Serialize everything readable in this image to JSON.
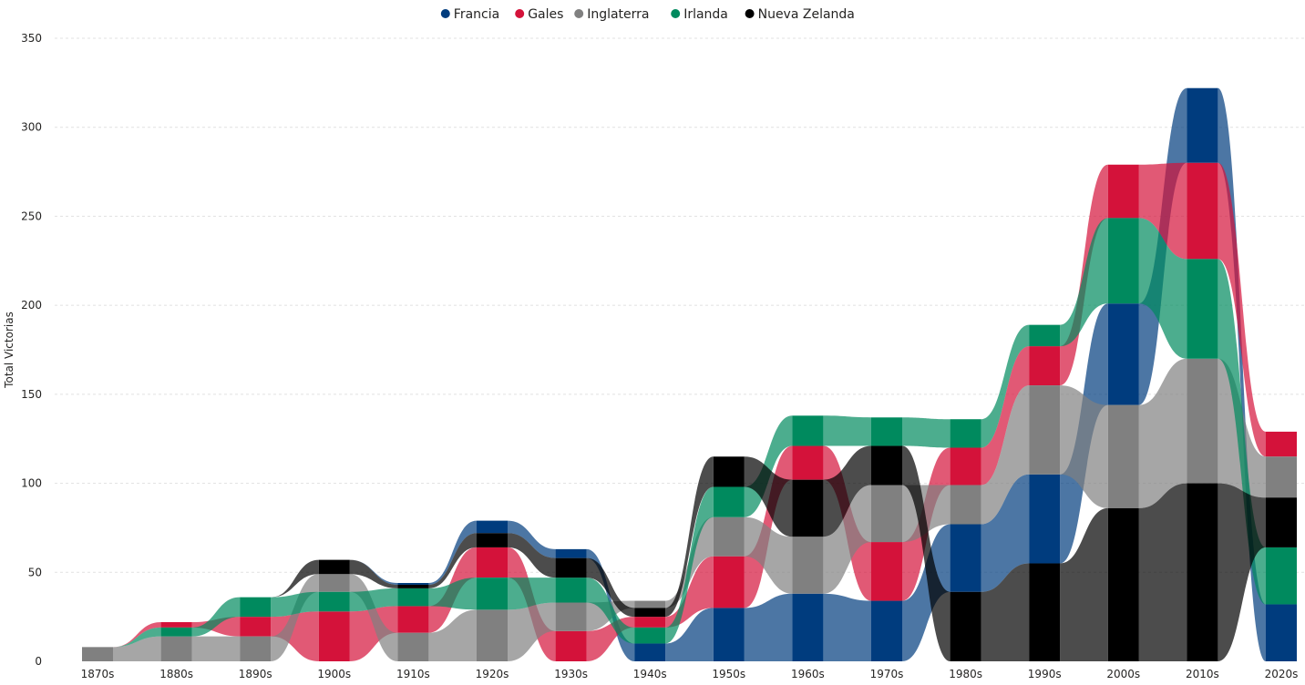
{
  "chart_data": {
    "type": "ribbon",
    "title": "",
    "xlabel": "",
    "ylabel": "Total Victorias",
    "ylim": [
      0,
      350
    ],
    "yticks": [
      0,
      50,
      100,
      150,
      200,
      250,
      300,
      350
    ],
    "grid": true,
    "legend_position": "top-center",
    "categories": [
      "1870s",
      "1880s",
      "1890s",
      "1900s",
      "1910s",
      "1920s",
      "1930s",
      "1940s",
      "1950s",
      "1960s",
      "1970s",
      "1980s",
      "1990s",
      "2000s",
      "2010s",
      "2020s"
    ],
    "series": [
      {
        "name": "Francia",
        "color": "#003C7E",
        "values": [
          0,
          0,
          0,
          0,
          1,
          7,
          5,
          10,
          30,
          38,
          34,
          38,
          50,
          57,
          42,
          32
        ]
      },
      {
        "name": "Gales",
        "color": "#D4123A",
        "values": [
          0,
          3,
          11,
          28,
          15,
          17,
          17,
          6,
          29,
          19,
          33,
          21,
          22,
          30,
          54,
          14
        ]
      },
      {
        "name": "Inglaterra",
        "color": "#808080",
        "values": [
          8,
          14,
          14,
          10,
          16,
          29,
          16,
          4,
          22,
          32,
          32,
          22,
          50,
          58,
          70,
          23
        ]
      },
      {
        "name": "Irlanda",
        "color": "#008A5E",
        "values": [
          0,
          5,
          11,
          11,
          10,
          18,
          14,
          9,
          17,
          17,
          16,
          16,
          12,
          48,
          56,
          32
        ]
      },
      {
        "name": "Nueva Zelanda",
        "color": "#000000",
        "values": [
          0,
          0,
          0,
          8,
          2,
          8,
          11,
          5,
          17,
          32,
          22,
          39,
          55,
          86,
          100,
          28
        ]
      }
    ]
  }
}
